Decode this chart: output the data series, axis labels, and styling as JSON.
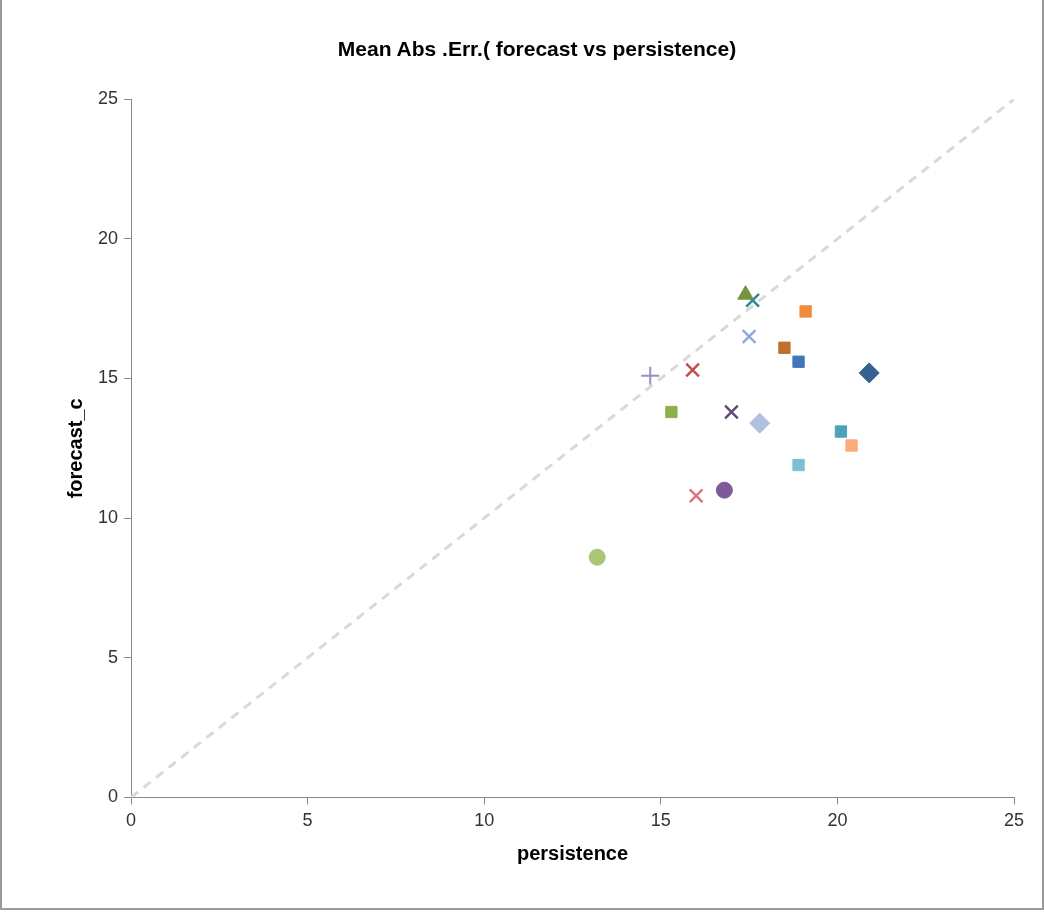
{
  "chart_data": {
    "type": "scatter",
    "title": "Mean Abs .Err.( forecast vs persistence)",
    "xlabel": "persistence",
    "ylabel": "forecast_c",
    "xlim": [
      0,
      25
    ],
    "xticks": [
      0,
      5,
      10,
      15,
      20,
      25
    ],
    "ylim": [
      0,
      25
    ],
    "yticks": [
      0,
      5,
      10,
      15,
      20,
      25
    ],
    "grid": false,
    "legend": false,
    "series": [
      {
        "type": "line",
        "color": "#d9d9d9",
        "line_style": "dashed",
        "marker": "none",
        "x": [
          0,
          25
        ],
        "values": [
          0,
          25
        ]
      },
      {
        "color": "#77933c",
        "marker": "triangle",
        "x": [
          17.4
        ],
        "values": [
          18.0
        ]
      },
      {
        "color": "#31849b",
        "marker": "cross",
        "x": [
          17.6
        ],
        "values": [
          17.8
        ]
      },
      {
        "color": "#ed8b3f",
        "marker": "square",
        "x": [
          19.1
        ],
        "values": [
          17.4
        ]
      },
      {
        "color": "#8eaadb",
        "marker": "cross",
        "x": [
          17.5
        ],
        "values": [
          16.5
        ]
      },
      {
        "color": "#c0702c",
        "marker": "square",
        "x": [
          18.5
        ],
        "values": [
          16.1
        ]
      },
      {
        "color": "#4276b9",
        "marker": "square",
        "x": [
          18.9
        ],
        "values": [
          15.6
        ]
      },
      {
        "color": "#376092",
        "marker": "diamond",
        "x": [
          20.9
        ],
        "values": [
          15.2
        ]
      },
      {
        "color": "#9d8ec0",
        "marker": "plus",
        "x": [
          14.7
        ],
        "values": [
          15.1
        ]
      },
      {
        "color": "#c0504d",
        "marker": "cross",
        "x": [
          15.9
        ],
        "values": [
          15.3
        ]
      },
      {
        "color": "#8db04a",
        "marker": "square",
        "x": [
          15.3
        ],
        "values": [
          13.8
        ]
      },
      {
        "color": "#604a7b",
        "marker": "cross",
        "x": [
          17.0
        ],
        "values": [
          13.8
        ]
      },
      {
        "color": "#b0c0e0",
        "marker": "diamond",
        "x": [
          17.8
        ],
        "values": [
          13.4
        ]
      },
      {
        "color": "#4aa3bb",
        "marker": "square",
        "x": [
          20.1
        ],
        "values": [
          13.1
        ]
      },
      {
        "color": "#fbaa79",
        "marker": "square",
        "x": [
          20.4
        ],
        "values": [
          12.6
        ]
      },
      {
        "color": "#7bbfd4",
        "marker": "square",
        "x": [
          18.9
        ],
        "values": [
          11.9
        ]
      },
      {
        "color": "#d47a7a",
        "marker": "cross",
        "x": [
          16.0
        ],
        "values": [
          10.8
        ]
      },
      {
        "color": "#7e5a9b",
        "marker": "circle",
        "x": [
          16.8
        ],
        "values": [
          11.0
        ]
      },
      {
        "color": "#a8c878",
        "marker": "circle",
        "x": [
          13.2
        ],
        "values": [
          8.6
        ]
      }
    ]
  }
}
